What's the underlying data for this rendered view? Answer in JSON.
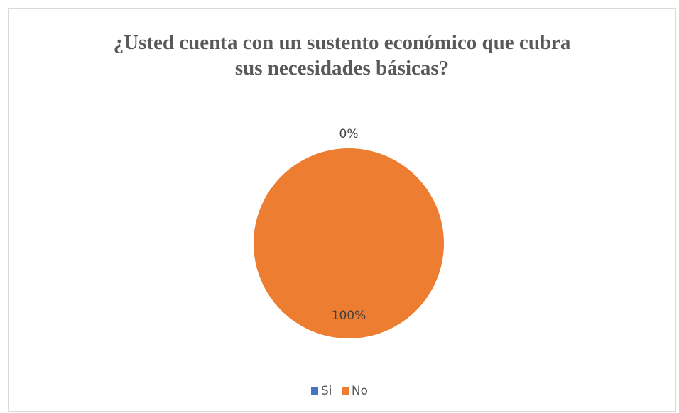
{
  "chart_data": {
    "type": "pie",
    "title_lines": [
      "¿Usted cuenta con un sustento económico que cubra",
      "sus necesidades básicas?"
    ],
    "categories": [
      "Si",
      "No"
    ],
    "values": [
      0,
      100
    ],
    "data_labels": [
      "0%",
      "100%"
    ],
    "colors": [
      "#4472c4",
      "#ed7d31"
    ],
    "legend": "bottom"
  }
}
